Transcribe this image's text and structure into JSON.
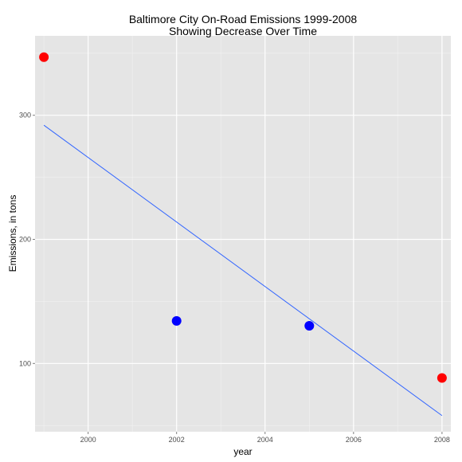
{
  "chart_data": {
    "type": "scatter",
    "title": "Baltimore City On-Road Emissions 1999-2008",
    "subtitle": "Showing Decrease Over Time",
    "xlabel": "year",
    "ylabel": "Emissions, in tons",
    "xlim": [
      1998.8,
      2008.2
    ],
    "ylim": [
      45,
      364
    ],
    "x_ticks": [
      2000,
      2002,
      2004,
      2006,
      2008
    ],
    "y_ticks": [
      100,
      200,
      300
    ],
    "grid": true,
    "legend": "none",
    "points": [
      {
        "x": 1999,
        "y": 346.8,
        "color": "#ff0000"
      },
      {
        "x": 2002,
        "y": 134.3,
        "color": "#0000ff"
      },
      {
        "x": 2005,
        "y": 130.4,
        "color": "#0000ff"
      },
      {
        "x": 2008,
        "y": 88.3,
        "color": "#ff0000"
      }
    ],
    "trend_line": {
      "color": "#3366ff",
      "x": [
        1999,
        2008
      ],
      "y": [
        292,
        58
      ]
    },
    "colors": {
      "panel": "#e5e5e5",
      "grid_major": "#ffffff",
      "grid_minor": "#f2f2f2"
    }
  }
}
